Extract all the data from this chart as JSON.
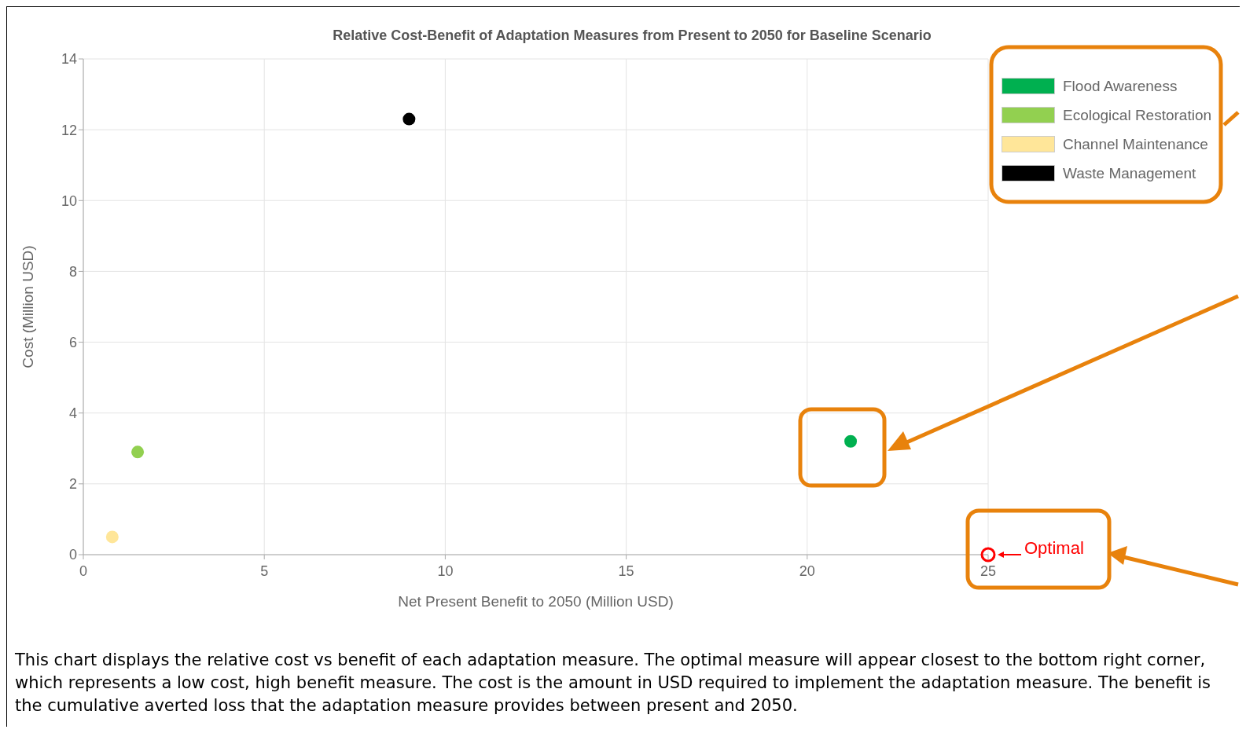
{
  "chart_data": {
    "type": "scatter",
    "title": "Relative Cost-Benefit of Adaptation Measures from Present to 2050 for Baseline Scenario",
    "xlabel": "Net Present Benefit to 2050 (Million USD)",
    "ylabel": "Cost (Million USD)",
    "xlim": [
      0,
      25
    ],
    "xticks": [
      0,
      5,
      10,
      15,
      20,
      25
    ],
    "ylim": [
      0,
      14
    ],
    "yticks": [
      0,
      2,
      4,
      6,
      8,
      10,
      12,
      14
    ],
    "grid": true,
    "legend": "top right",
    "marker": "circle",
    "series": [
      {
        "name": "Flood Awareness",
        "color": "#00b050",
        "x": [
          21.2
        ],
        "values": [
          3.2
        ]
      },
      {
        "name": "Ecological Restoration",
        "color": "#92d050",
        "x": [
          1.5
        ],
        "values": [
          2.9
        ]
      },
      {
        "name": "Channel Maintenance",
        "color": "#ffe699",
        "x": [
          0.8
        ],
        "values": [
          0.5
        ]
      },
      {
        "name": "Waste Management",
        "color": "#000000",
        "x": [
          9.0
        ],
        "values": [
          12.3
        ]
      }
    ],
    "annotations": [
      {
        "text": "Optimal",
        "x": 25,
        "y": 0
      },
      "This chart displays the relative cost vs benefit of each adaptation measure. The optimal measure will appear closest to the bottom right corner, which represents a low cost, high benefit measure. The cost is the amount in USD required to implement the adaptation measure. The benefit is the cumulative averted loss that the adaptation measure provides between present and 2050."
    ]
  }
}
